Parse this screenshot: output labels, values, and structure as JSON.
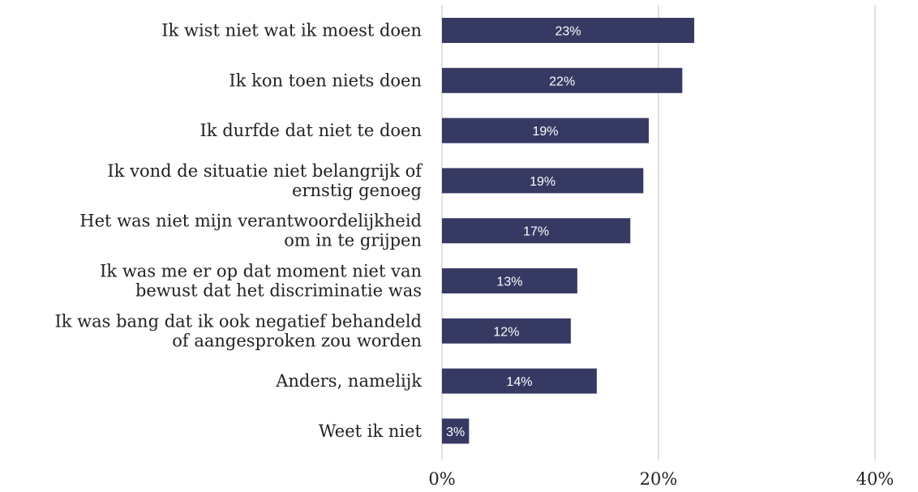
{
  "chart_data": {
    "type": "bar",
    "orientation": "horizontal",
    "title": "",
    "xlabel": "",
    "ylabel": "",
    "categories": [
      [
        "Ik wist niet wat ik moest doen"
      ],
      [
        "Ik kon toen niets doen"
      ],
      [
        "Ik durfde dat niet te doen"
      ],
      [
        "Ik vond de situatie niet belangrijk of",
        "ernstig genoeg"
      ],
      [
        "Het was niet mijn verantwoordelijkheid",
        "om in te grijpen"
      ],
      [
        "Ik was me er op dat moment niet van",
        "bewust dat het discriminatie was"
      ],
      [
        "Ik was bang dat ik ook negatief behandeld",
        "of aangesproken zou worden"
      ],
      [
        "Anders, namelijk"
      ],
      [
        "Weet ik niet"
      ]
    ],
    "values": [
      23.3,
      22.2,
      19.1,
      18.6,
      17.4,
      12.5,
      11.9,
      14.3,
      2.5
    ],
    "data_labels": [
      "23%",
      "22%",
      "19%",
      "19%",
      "17%",
      "13%",
      "12%",
      "14%",
      "3%"
    ],
    "xlim": [
      0,
      40
    ],
    "xticks": [
      0,
      20,
      40
    ],
    "xtick_labels": [
      "0%",
      "20%",
      "40%"
    ],
    "grid": true,
    "legend": "none",
    "colors": {
      "bar": "#363a63",
      "grid": "#d9d9d9",
      "text": "#222222",
      "bar_label": "#ffffff"
    }
  }
}
